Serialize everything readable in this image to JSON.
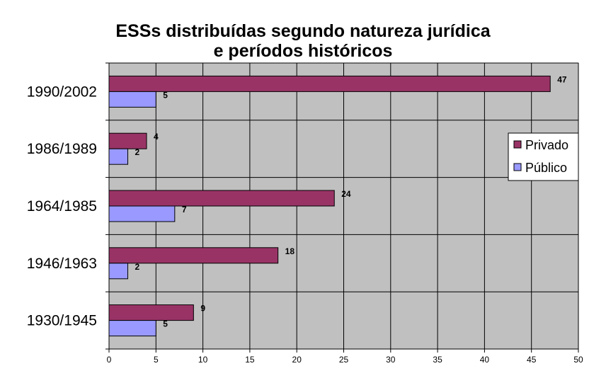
{
  "chart_data": {
    "type": "bar",
    "orientation": "horizontal",
    "title_lines": [
      "ESSs distribuídas segundo natureza jurídica",
      "e períodos históricos"
    ],
    "categories": [
      "1990/2002",
      "1986/1989",
      "1964/1985",
      "1946/1963",
      "1930/1945"
    ],
    "series": [
      {
        "name": "Privado",
        "values": [
          47,
          4,
          24,
          18,
          9
        ],
        "color": "#993366"
      },
      {
        "name": "Público",
        "values": [
          5,
          2,
          7,
          2,
          5
        ],
        "color": "#9999ff"
      }
    ],
    "xlim": [
      0,
      50
    ],
    "xticks": [
      0,
      5,
      10,
      15,
      20,
      25,
      30,
      35,
      40,
      45,
      50
    ],
    "grid": true,
    "plot_background": "#c0c0c0",
    "legend_position": "right"
  }
}
